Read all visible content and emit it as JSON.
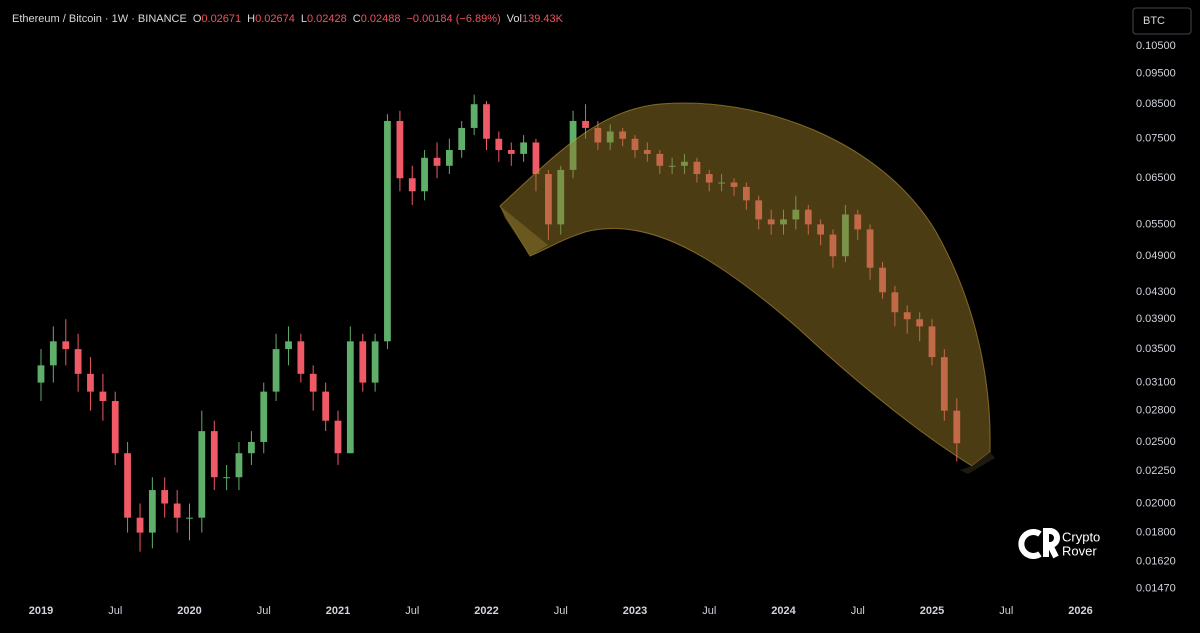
{
  "chart_data": {
    "type": "candlestick",
    "header": {
      "symbol": "Ethereum / Bitcoin · 1W · BINANCE",
      "ohlc": [
        {
          "label": "O",
          "value": "0.02671"
        },
        {
          "label": "H",
          "value": "0.02674"
        },
        {
          "label": "L",
          "value": "0.02428"
        },
        {
          "label": "C",
          "value": "0.02488"
        }
      ],
      "change": "−0.00184 (−6.89%)",
      "volume": {
        "label": "Vol",
        "value": "139.43K"
      }
    },
    "currency": "BTC",
    "watermark": [
      "Crypto",
      "Rover"
    ],
    "log_scale": true,
    "grid": false,
    "up_color": "#5fae6a",
    "down_color": "#ef5a66",
    "xlim": [
      2018.724,
      2026.266
    ],
    "ylim": [
      0.0141,
      0.124
    ],
    "xticks": [
      {
        "value": 2019,
        "label": "2019"
      },
      {
        "value": 2019.5,
        "label": "Jul"
      },
      {
        "value": 2020,
        "label": "2020"
      },
      {
        "value": 2020.5,
        "label": "Jul"
      },
      {
        "value": 2021,
        "label": "2021"
      },
      {
        "value": 2021.5,
        "label": "Jul"
      },
      {
        "value": 2022,
        "label": "2022"
      },
      {
        "value": 2022.5,
        "label": "Jul"
      },
      {
        "value": 2023,
        "label": "2023"
      },
      {
        "value": 2023.5,
        "label": "Jul"
      },
      {
        "value": 2024,
        "label": "2024"
      },
      {
        "value": 2024.5,
        "label": "Jul"
      },
      {
        "value": 2025,
        "label": "2025"
      },
      {
        "value": 2025.5,
        "label": "Jul"
      },
      {
        "value": 2026,
        "label": "2026"
      }
    ],
    "yticks": [
      {
        "value": 0.105,
        "label": "0.10500"
      },
      {
        "value": 0.095,
        "label": "0.09500"
      },
      {
        "value": 0.085,
        "label": "0.08500"
      },
      {
        "value": 0.075,
        "label": "0.07500"
      },
      {
        "value": 0.065,
        "label": "0.06500"
      },
      {
        "value": 0.055,
        "label": "0.05500"
      },
      {
        "value": 0.049,
        "label": "0.04900"
      },
      {
        "value": 0.043,
        "label": "0.04300"
      },
      {
        "value": 0.039,
        "label": "0.03900"
      },
      {
        "value": 0.035,
        "label": "0.03500"
      },
      {
        "value": 0.031,
        "label": "0.03100"
      },
      {
        "value": 0.028,
        "label": "0.02800"
      },
      {
        "value": 0.025,
        "label": "0.02500"
      },
      {
        "value": 0.0225,
        "label": "0.02250"
      },
      {
        "value": 0.02,
        "label": "0.02000"
      },
      {
        "value": 0.018,
        "label": "0.01800"
      },
      {
        "value": 0.0162,
        "label": "0.01620"
      },
      {
        "value": 0.0147,
        "label": "0.01470"
      }
    ],
    "x": [
      2019.0,
      2019.083,
      2019.167,
      2019.25,
      2019.333,
      2019.417,
      2019.5,
      2019.583,
      2019.667,
      2019.75,
      2019.833,
      2019.917,
      2020.0,
      2020.083,
      2020.167,
      2020.25,
      2020.333,
      2020.417,
      2020.5,
      2020.583,
      2020.667,
      2020.75,
      2020.833,
      2020.917,
      2021.0,
      2021.083,
      2021.167,
      2021.25,
      2021.333,
      2021.417,
      2021.5,
      2021.583,
      2021.667,
      2021.75,
      2021.833,
      2021.917,
      2022.0,
      2022.083,
      2022.167,
      2022.25,
      2022.333,
      2022.417,
      2022.5,
      2022.583,
      2022.667,
      2022.75,
      2022.833,
      2022.917,
      2023.0,
      2023.083,
      2023.167,
      2023.25,
      2023.333,
      2023.417,
      2023.5,
      2023.583,
      2023.667,
      2023.75,
      2023.833,
      2023.917,
      2024.0,
      2024.083,
      2024.167,
      2024.25,
      2024.333,
      2024.417,
      2024.5,
      2024.583,
      2024.667,
      2024.75,
      2024.833,
      2024.917,
      2025.0,
      2025.083,
      2025.167
    ],
    "open": [
      0.031,
      0.033,
      0.036,
      0.035,
      0.032,
      0.03,
      0.029,
      0.024,
      0.019,
      0.018,
      0.021,
      0.02,
      0.019,
      0.019,
      0.026,
      0.022,
      0.022,
      0.024,
      0.025,
      0.03,
      0.035,
      0.036,
      0.032,
      0.03,
      0.027,
      0.024,
      0.036,
      0.031,
      0.036,
      0.08,
      0.065,
      0.062,
      0.07,
      0.068,
      0.072,
      0.078,
      0.085,
      0.075,
      0.072,
      0.071,
      0.074,
      0.066,
      0.055,
      0.067,
      0.08,
      0.078,
      0.074,
      0.077,
      0.075,
      0.072,
      0.071,
      0.068,
      0.068,
      0.069,
      0.066,
      0.064,
      0.064,
      0.063,
      0.06,
      0.056,
      0.055,
      0.056,
      0.058,
      0.055,
      0.053,
      0.049,
      0.057,
      0.054,
      0.047,
      0.043,
      0.04,
      0.039,
      0.038,
      0.034,
      0.028
    ],
    "high": [
      0.035,
      0.038,
      0.039,
      0.037,
      0.034,
      0.032,
      0.03,
      0.025,
      0.02,
      0.022,
      0.022,
      0.021,
      0.02,
      0.028,
      0.027,
      0.023,
      0.025,
      0.026,
      0.031,
      0.037,
      0.038,
      0.037,
      0.033,
      0.031,
      0.028,
      0.038,
      0.037,
      0.037,
      0.082,
      0.083,
      0.068,
      0.072,
      0.074,
      0.075,
      0.08,
      0.088,
      0.086,
      0.077,
      0.074,
      0.076,
      0.075,
      0.067,
      0.068,
      0.083,
      0.085,
      0.08,
      0.079,
      0.078,
      0.076,
      0.074,
      0.072,
      0.07,
      0.071,
      0.07,
      0.067,
      0.066,
      0.065,
      0.064,
      0.061,
      0.058,
      0.058,
      0.061,
      0.059,
      0.056,
      0.054,
      0.059,
      0.058,
      0.055,
      0.048,
      0.044,
      0.041,
      0.04,
      0.039,
      0.035,
      0.0293
    ],
    "low": [
      0.029,
      0.031,
      0.033,
      0.03,
      0.028,
      0.027,
      0.023,
      0.018,
      0.0168,
      0.017,
      0.019,
      0.018,
      0.0175,
      0.018,
      0.021,
      0.021,
      0.021,
      0.023,
      0.024,
      0.029,
      0.033,
      0.031,
      0.028,
      0.026,
      0.023,
      0.024,
      0.03,
      0.03,
      0.035,
      0.062,
      0.059,
      0.06,
      0.065,
      0.066,
      0.07,
      0.076,
      0.072,
      0.069,
      0.068,
      0.069,
      0.062,
      0.052,
      0.053,
      0.065,
      0.075,
      0.072,
      0.072,
      0.073,
      0.07,
      0.069,
      0.066,
      0.066,
      0.066,
      0.064,
      0.062,
      0.062,
      0.061,
      0.058,
      0.054,
      0.053,
      0.053,
      0.054,
      0.053,
      0.051,
      0.047,
      0.048,
      0.052,
      0.045,
      0.042,
      0.038,
      0.037,
      0.036,
      0.033,
      0.027,
      0.0233
    ],
    "close": [
      0.033,
      0.036,
      0.035,
      0.032,
      0.03,
      0.029,
      0.024,
      0.019,
      0.018,
      0.021,
      0.02,
      0.019,
      0.019,
      0.026,
      0.022,
      0.022,
      0.024,
      0.025,
      0.03,
      0.035,
      0.036,
      0.032,
      0.03,
      0.027,
      0.024,
      0.036,
      0.031,
      0.036,
      0.08,
      0.065,
      0.062,
      0.07,
      0.068,
      0.072,
      0.078,
      0.085,
      0.075,
      0.072,
      0.071,
      0.074,
      0.066,
      0.055,
      0.067,
      0.08,
      0.078,
      0.074,
      0.077,
      0.075,
      0.072,
      0.071,
      0.068,
      0.068,
      0.069,
      0.066,
      0.064,
      0.064,
      0.063,
      0.06,
      0.056,
      0.055,
      0.056,
      0.058,
      0.055,
      0.053,
      0.049,
      0.057,
      0.054,
      0.047,
      0.043,
      0.04,
      0.039,
      0.038,
      0.034,
      0.028,
      0.02488
    ]
  }
}
